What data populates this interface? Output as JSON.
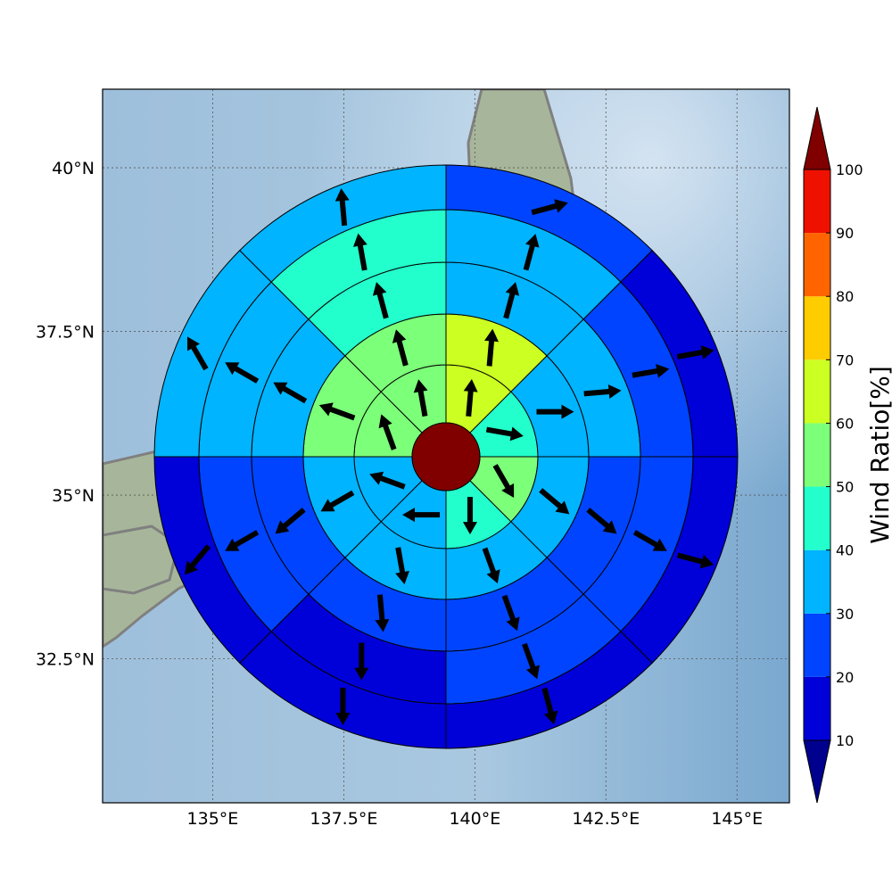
{
  "map": {
    "lon_range": [
      132.9,
      146.0
    ],
    "lat_range": [
      30.3,
      41.2
    ],
    "lon_ticks": [
      {
        "value": 135.0,
        "label": "135°E"
      },
      {
        "value": 137.5,
        "label": "137.5°E"
      },
      {
        "value": 140.0,
        "label": "140°E"
      },
      {
        "value": 142.5,
        "label": "142.5°E"
      },
      {
        "value": 145.0,
        "label": "145°E"
      }
    ],
    "lat_ticks": [
      {
        "value": 32.5,
        "label": "32.5°N"
      },
      {
        "value": 35.0,
        "label": "35°N"
      },
      {
        "value": 37.5,
        "label": "37.5°N"
      },
      {
        "value": 40.0,
        "label": "40°N"
      }
    ],
    "gridlines": true,
    "background": "shaded relief",
    "coastline_color": "#808080"
  },
  "colorbar": {
    "label": "Wind Ratio[%]",
    "levels": [
      10,
      20,
      30,
      40,
      50,
      60,
      70,
      80,
      90,
      100
    ],
    "colors": [
      "#0000d9",
      "#0044ff",
      "#00b4ff",
      "#22ffcc",
      "#7cff79",
      "#ccff22",
      "#ffcc00",
      "#ff6400",
      "#ee1100"
    ],
    "under_color": "#00008f",
    "over_color": "#800000",
    "extend": "both"
  },
  "chart_data": {
    "type": "polar_sector_wind",
    "center_value": 100,
    "center_color": "#800000",
    "sector_count": 8,
    "ring_count": 5,
    "sector_boundaries_deg_from_north": [
      0,
      45,
      90,
      135,
      180,
      225,
      270,
      315
    ],
    "rings": [
      {
        "ring": 1,
        "ratio": [
          65,
          45,
          55,
          45,
          35,
          35,
          55,
          55
        ],
        "arrow_dir_deg": [
          5,
          100,
          150,
          180,
          270,
          290,
          340,
          350
        ]
      },
      {
        "ring": 2,
        "ratio": [
          65,
          35,
          35,
          35,
          35,
          35,
          55,
          55
        ],
        "arrow_dir_deg": [
          5,
          90,
          130,
          160,
          170,
          240,
          290,
          345
        ]
      },
      {
        "ring": 3,
        "ratio": [
          35,
          35,
          25,
          25,
          25,
          25,
          35,
          45
        ],
        "arrow_dir_deg": [
          15,
          85,
          130,
          160,
          175,
          230,
          300,
          345
        ]
      },
      {
        "ring": 4,
        "ratio": [
          35,
          25,
          25,
          25,
          15,
          25,
          35,
          45
        ],
        "arrow_dir_deg": [
          15,
          80,
          120,
          160,
          180,
          240,
          300,
          350
        ]
      },
      {
        "ring": 5,
        "ratio": [
          25,
          15,
          15,
          15,
          15,
          15,
          35,
          35
        ],
        "arrow_dir_deg": [
          75,
          80,
          105,
          165,
          180,
          220,
          330,
          355
        ]
      }
    ]
  }
}
